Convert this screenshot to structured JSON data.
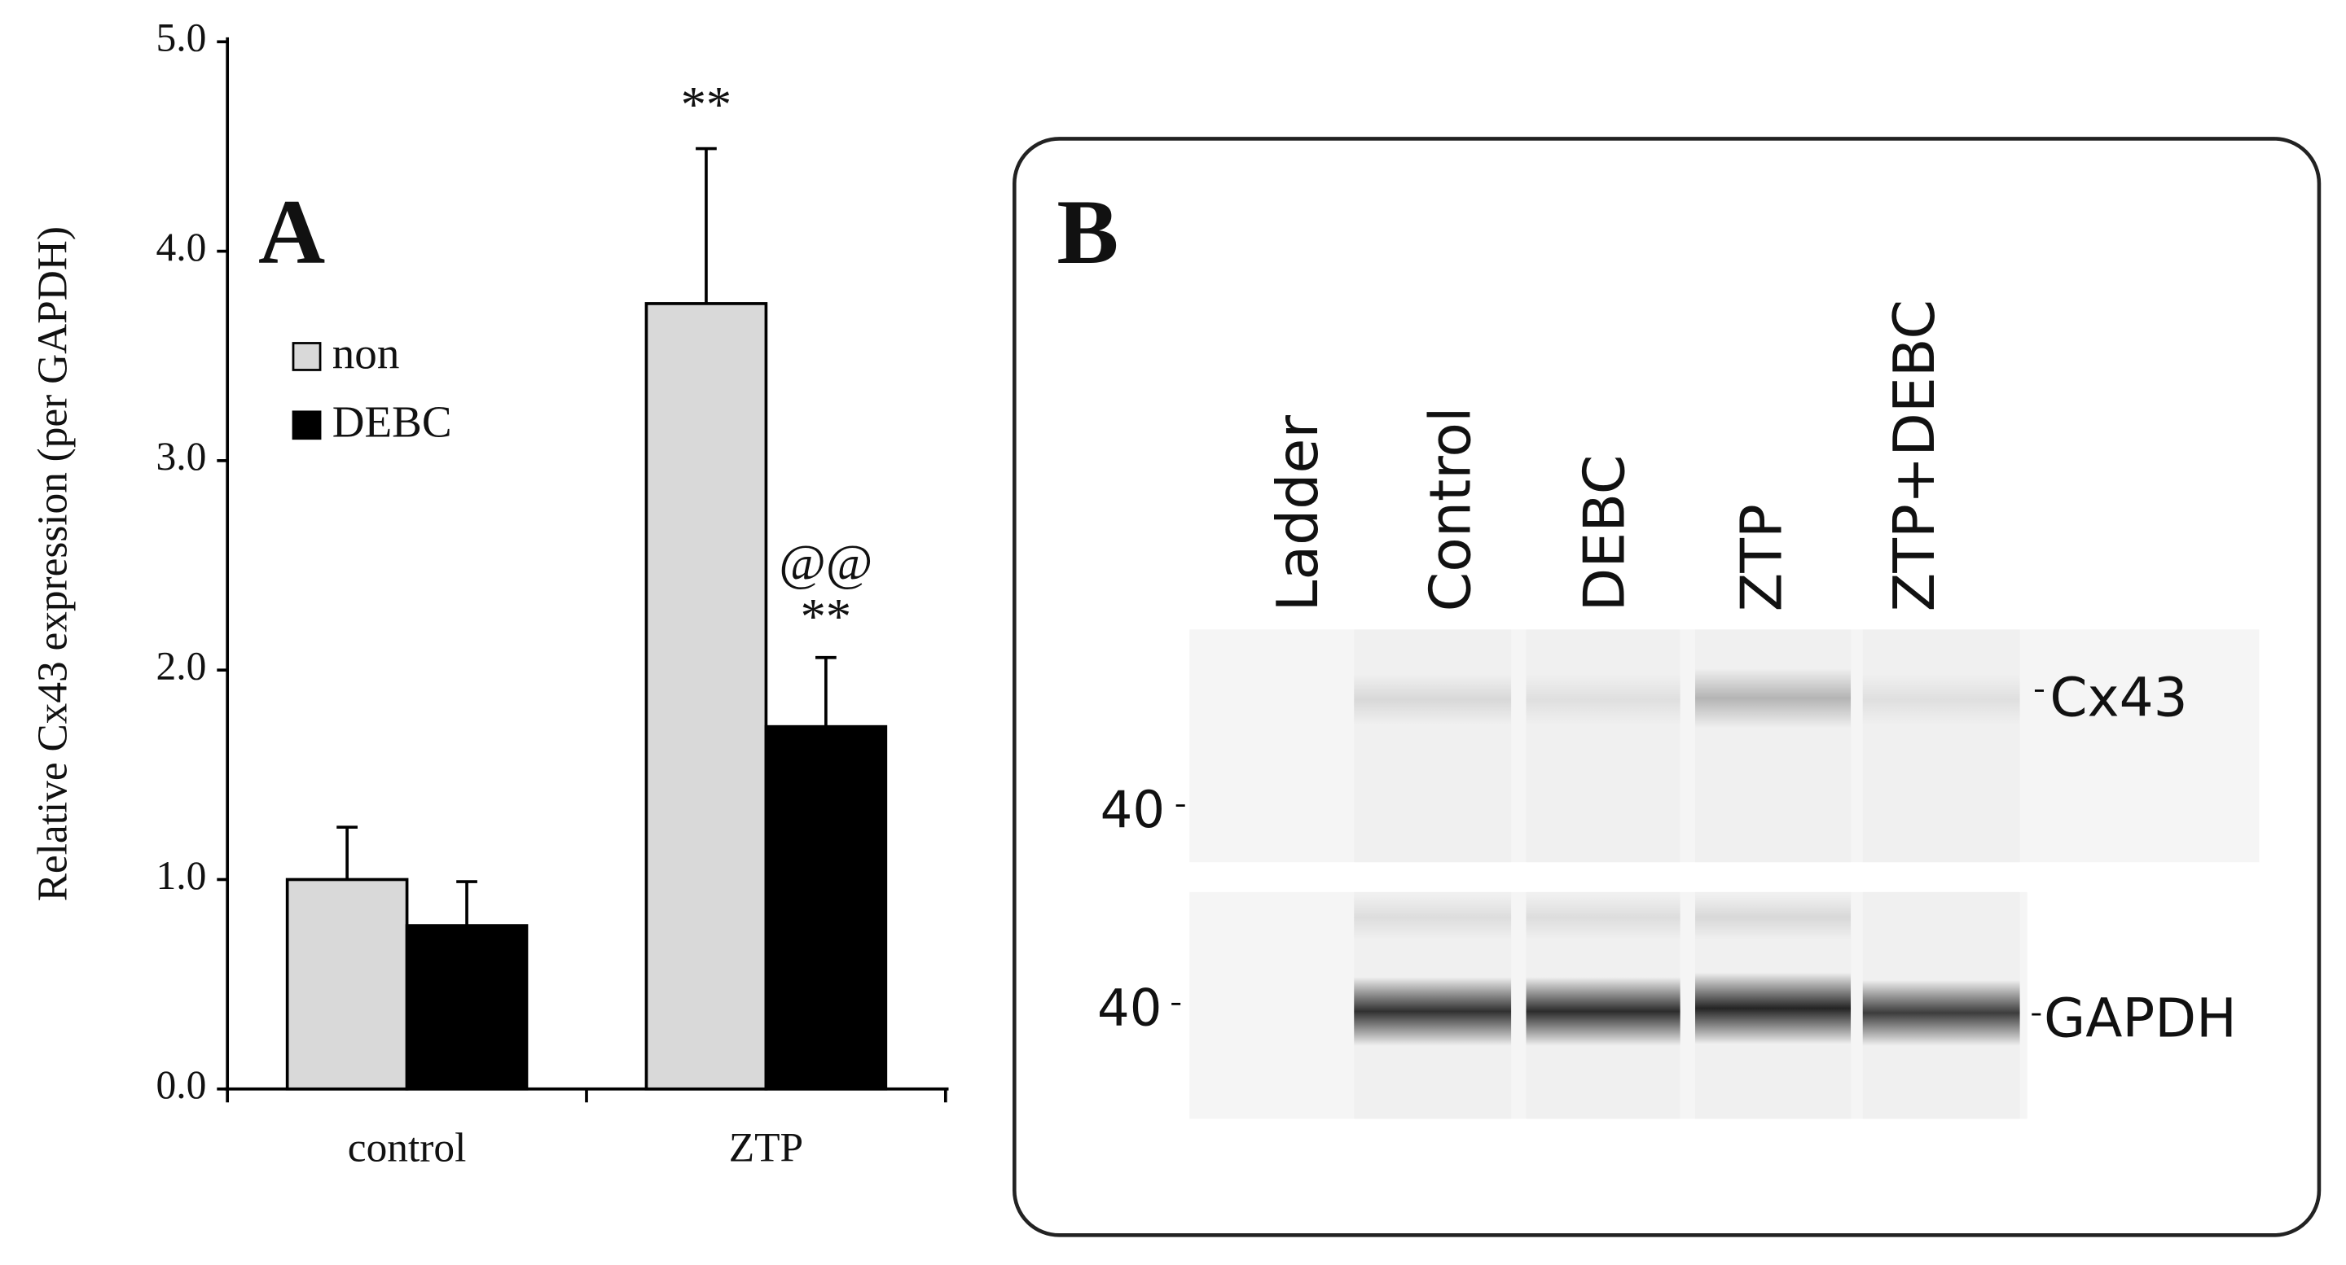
{
  "chart_data": {
    "type": "bar",
    "panel_label": "A",
    "ylabel": "Relative Cx43 expression (per GAPDH)",
    "categories": [
      "control",
      "ZTP"
    ],
    "series": [
      {
        "name": "non",
        "color": "#d9d9d9",
        "values": [
          1.0,
          3.75
        ],
        "errors": [
          0.25,
          0.74
        ]
      },
      {
        "name": "DEBC",
        "color": "#000000",
        "values": [
          0.78,
          1.73
        ],
        "errors": [
          0.21,
          0.33
        ]
      }
    ],
    "annotations": [
      "**",
      "@@",
      "**"
    ],
    "ylim": [
      0,
      5
    ],
    "yticks": [
      {
        "value": 0,
        "label": "0.0"
      },
      {
        "value": 1,
        "label": "1.0"
      },
      {
        "value": 2,
        "label": "2.0"
      },
      {
        "value": 3,
        "label": "3.0"
      },
      {
        "value": 4,
        "label": "4.0"
      },
      {
        "value": 5,
        "label": "5.0"
      }
    ],
    "legend": "upper left",
    "grid": false
  },
  "panel_b": {
    "label": "B",
    "lanes": [
      "Ladder",
      "Control",
      "DEBC",
      "ZTP",
      "ZTP+DEBC"
    ],
    "markers": [
      "40",
      "40"
    ],
    "proteins": [
      "Cx43",
      "GAPDH"
    ]
  }
}
